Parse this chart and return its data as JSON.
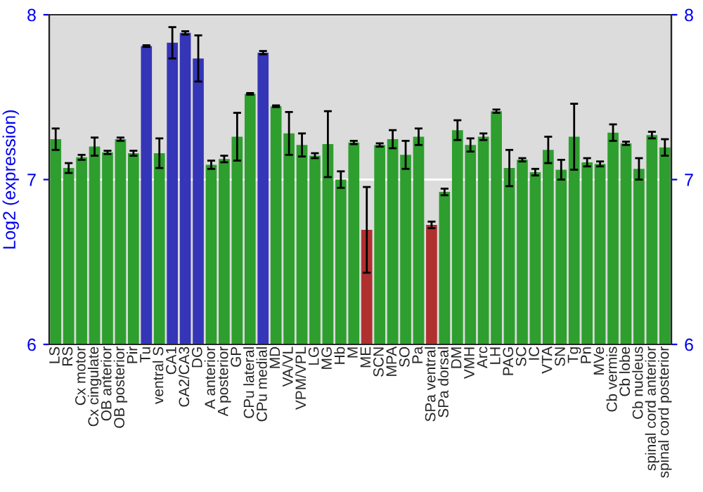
{
  "chart_data": {
    "type": "bar",
    "ylabel": "Log2 (expression)",
    "categories": [
      "LS",
      "RS",
      "Cx motor",
      "Cx cingulate",
      "OB anterior",
      "OB posterior",
      "Pir",
      "Tu",
      "ventral S",
      "CA1",
      "CA2/CA3",
      "DG",
      "A anterior",
      "A posterior",
      "GP",
      "CPu lateral",
      "CPu medial",
      "MD",
      "VA/VL",
      "VPM/VPL",
      "LG",
      "MG",
      "Hb",
      "M",
      "ME",
      "SCN",
      "MPA",
      "SO",
      "Pa",
      "SPa ventral",
      "SPa dorsal",
      "DM",
      "VMH",
      "Arc",
      "LH",
      "PAG",
      "SC",
      "IC",
      "VTA",
      "SN",
      "Tg",
      "Pn",
      "MVe",
      "Cb vermis",
      "Cb lobe",
      "Cb nucleus",
      "spinal cord anterior",
      "spinal cord posterior"
    ],
    "values": [
      7.245,
      7.07,
      7.135,
      7.2,
      7.165,
      7.245,
      7.16,
      7.81,
      7.16,
      7.83,
      7.89,
      7.735,
      7.09,
      7.125,
      7.26,
      7.52,
      7.77,
      7.445,
      7.28,
      7.21,
      7.145,
      7.215,
      7.0,
      7.225,
      6.695,
      7.21,
      7.245,
      7.15,
      7.26,
      6.725,
      6.925,
      7.3,
      7.21,
      7.26,
      7.415,
      7.07,
      7.12,
      7.045,
      7.18,
      7.06,
      7.26,
      7.105,
      7.095,
      7.285,
      7.22,
      7.065,
      7.27,
      7.195
    ],
    "errors": [
      0.065,
      0.03,
      0.015,
      0.055,
      0.01,
      0.01,
      0.015,
      0.005,
      0.09,
      0.095,
      0.01,
      0.14,
      0.025,
      0.02,
      0.145,
      0.005,
      0.01,
      0.005,
      0.13,
      0.07,
      0.015,
      0.2,
      0.05,
      0.01,
      0.26,
      0.01,
      0.055,
      0.085,
      0.05,
      0.02,
      0.02,
      0.06,
      0.04,
      0.02,
      0.01,
      0.11,
      0.01,
      0.02,
      0.08,
      0.06,
      0.2,
      0.025,
      0.015,
      0.05,
      0.01,
      0.065,
      0.02,
      0.05
    ],
    "colors": [
      "#2e9e2e",
      "#2e9e2e",
      "#2e9e2e",
      "#2e9e2e",
      "#2e9e2e",
      "#2e9e2e",
      "#2e9e2e",
      "#3535b8",
      "#2e9e2e",
      "#3535b8",
      "#3535b8",
      "#3535b8",
      "#2e9e2e",
      "#2e9e2e",
      "#2e9e2e",
      "#2e9e2e",
      "#3535b8",
      "#2e9e2e",
      "#2e9e2e",
      "#2e9e2e",
      "#2e9e2e",
      "#2e9e2e",
      "#2e9e2e",
      "#2e9e2e",
      "#b03030",
      "#2e9e2e",
      "#2e9e2e",
      "#2e9e2e",
      "#2e9e2e",
      "#b03030",
      "#2e9e2e",
      "#2e9e2e",
      "#2e9e2e",
      "#2e9e2e",
      "#2e9e2e",
      "#2e9e2e",
      "#2e9e2e",
      "#2e9e2e",
      "#2e9e2e",
      "#2e9e2e",
      "#2e9e2e",
      "#2e9e2e",
      "#2e9e2e",
      "#2e9e2e",
      "#2e9e2e",
      "#2e9e2e",
      "#2e9e2e",
      "#2e9e2e"
    ],
    "ylim": [
      6,
      8
    ],
    "yticks": [
      6,
      7,
      8
    ],
    "y2lim": [
      6,
      8
    ],
    "y2ticks": [
      6,
      7,
      8
    ],
    "grid": "y"
  }
}
